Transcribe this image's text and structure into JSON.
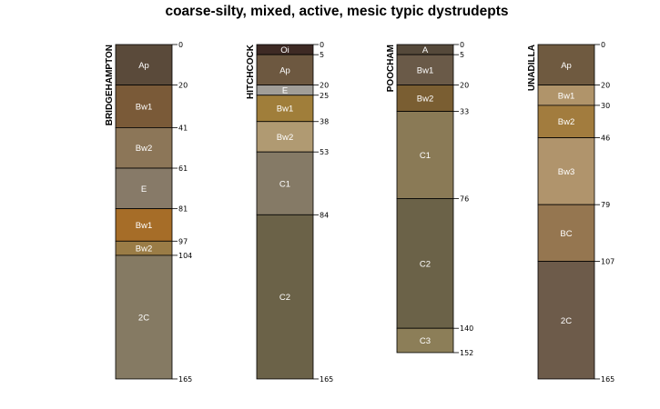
{
  "chart_data": {
    "type": "soil-profile",
    "title": "coarse-silty, mixed, active, mesic typic dystrudepts",
    "depth_range": [
      0,
      165
    ],
    "profiles": [
      {
        "name": "BRIDGEHAMPTON",
        "horizons": [
          {
            "label": "Ap",
            "top": 0,
            "bottom": 20,
            "color": "#5a4a3a"
          },
          {
            "label": "Bw1",
            "top": 20,
            "bottom": 41,
            "color": "#7a5a38"
          },
          {
            "label": "Bw2",
            "top": 41,
            "bottom": 61,
            "color": "#8c7658"
          },
          {
            "label": "E",
            "top": 61,
            "bottom": 81,
            "color": "#877a68"
          },
          {
            "label": "Bw1",
            "top": 81,
            "bottom": 97,
            "color": "#a66d28"
          },
          {
            "label": "Bw2",
            "top": 97,
            "bottom": 104,
            "color": "#9a7c46"
          },
          {
            "label": "2C",
            "top": 104,
            "bottom": 165,
            "color": "#857a63"
          }
        ],
        "depth_ticks": [
          "0",
          "20",
          "41",
          "61",
          "81",
          "97",
          "104",
          "165"
        ]
      },
      {
        "name": "HITCHCOCK",
        "horizons": [
          {
            "label": "Oi",
            "top": 0,
            "bottom": 5,
            "color": "#3e2a24"
          },
          {
            "label": "Ap",
            "top": 5,
            "bottom": 20,
            "color": "#6d5840"
          },
          {
            "label": "E",
            "top": 20,
            "bottom": 25,
            "color": "#a19e98"
          },
          {
            "label": "Bw1",
            "top": 25,
            "bottom": 38,
            "color": "#a07e3a"
          },
          {
            "label": "Bw2",
            "top": 38,
            "bottom": 53,
            "color": "#b09a72"
          },
          {
            "label": "C1",
            "top": 53,
            "bottom": 84,
            "color": "#857a66"
          },
          {
            "label": "C2",
            "top": 84,
            "bottom": 165,
            "color": "#6b6248"
          }
        ],
        "depth_ticks": [
          "0",
          "5",
          "20",
          "25",
          "38",
          "53",
          "84",
          "165"
        ]
      },
      {
        "name": "POOCHAM",
        "horizons": [
          {
            "label": "A",
            "top": 0,
            "bottom": 5,
            "color": "#55493a"
          },
          {
            "label": "Bw1",
            "top": 5,
            "bottom": 20,
            "color": "#6a5a48"
          },
          {
            "label": "Bw2",
            "top": 20,
            "bottom": 33,
            "color": "#7a5e32"
          },
          {
            "label": "C1",
            "top": 33,
            "bottom": 76,
            "color": "#8a7a56"
          },
          {
            "label": "C2",
            "top": 76,
            "bottom": 140,
            "color": "#6b6248"
          },
          {
            "label": "C3",
            "top": 140,
            "bottom": 152,
            "color": "#8c7e58"
          }
        ],
        "depth_ticks": [
          "0",
          "5",
          "20",
          "33",
          "76",
          "140",
          "152"
        ]
      },
      {
        "name": "UNADILLA",
        "horizons": [
          {
            "label": "Ap",
            "top": 0,
            "bottom": 20,
            "color": "#6f5a40"
          },
          {
            "label": "Bw1",
            "top": 20,
            "bottom": 30,
            "color": "#b0946a"
          },
          {
            "label": "Bw2",
            "top": 30,
            "bottom": 46,
            "color": "#a27c3e"
          },
          {
            "label": "Bw3",
            "top": 46,
            "bottom": 79,
            "color": "#b0946c"
          },
          {
            "label": "BC",
            "top": 79,
            "bottom": 107,
            "color": "#957650"
          },
          {
            "label": "2C",
            "top": 107,
            "bottom": 165,
            "color": "#6d5b4a"
          }
        ],
        "depth_ticks": [
          "0",
          "20",
          "30",
          "46",
          "79",
          "107",
          "165"
        ]
      }
    ]
  }
}
